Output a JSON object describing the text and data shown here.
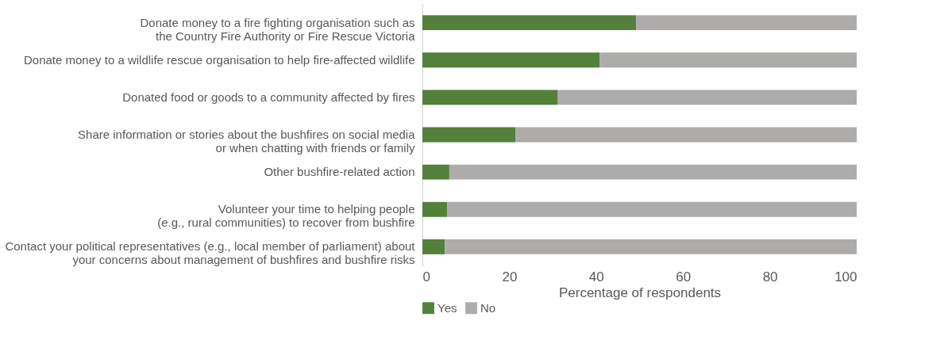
{
  "chart_data": {
    "type": "bar",
    "orientation": "horizontal",
    "stacked": true,
    "categories": [
      "Donate money to a fire fighting organisation such as\nthe Country Fire Authority or Fire Rescue Victoria",
      "Donate money to a wildlife rescue organisation to help fire-affected wildlife",
      "Donated food or goods to a community affected by fires",
      "Share information or stories about the bushfires on social media\nor when chatting with friends or family",
      "Other bushfire-related action",
      "Volunteer your time to helping people\n(e.g., rural communities) to recover from bushfire",
      "Contact your political representatives (e.g., local member of parliament) about\nyour concerns about management of bushfires and bushfire risks"
    ],
    "series": [
      {
        "name": "Yes",
        "color": "#53803a",
        "values": [
          49.2,
          40.8,
          31.2,
          21.4,
          6.2,
          5.7,
          5.2
        ]
      },
      {
        "name": "No",
        "color": "#adacab",
        "values": [
          50.8,
          59.2,
          68.8,
          78.6,
          93.8,
          94.3,
          94.8
        ]
      }
    ],
    "xlabel": "Percentage of respondents",
    "xlim": [
      0,
      100
    ],
    "xticks": [
      0,
      20,
      40,
      60,
      80,
      100
    ],
    "grid": false,
    "legend": "bottom left"
  }
}
